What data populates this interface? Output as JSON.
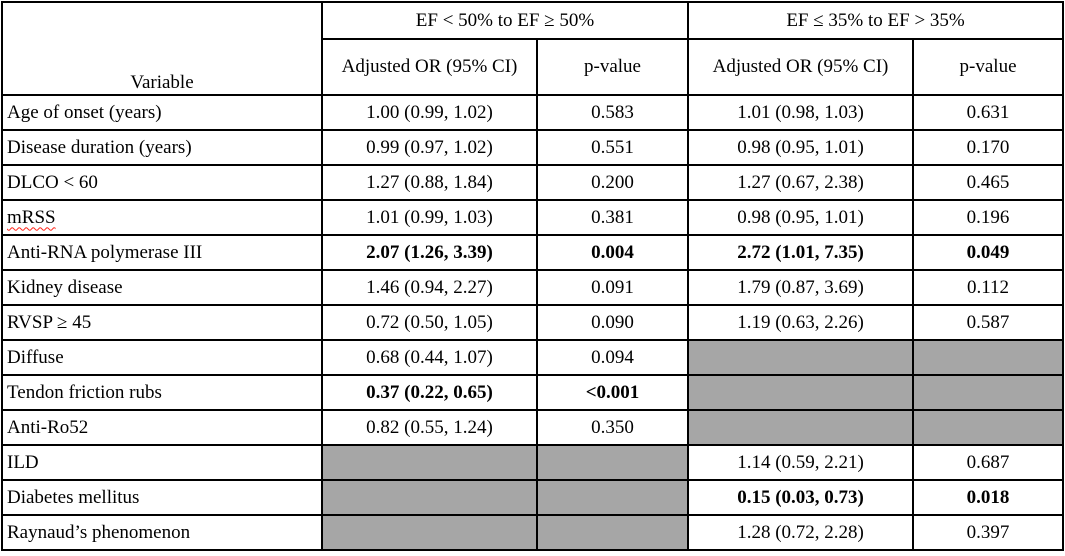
{
  "table": {
    "columns": {
      "variable_header": "Variable",
      "group1": {
        "title": "EF < 50% to EF ≥ 50%",
        "or_header": "Adjusted OR (95% CI)",
        "p_header": "p-value"
      },
      "group2": {
        "title": "EF ≤ 35% to EF > 35%",
        "or_header": "Adjusted OR (95% CI)",
        "p_header": "p-value"
      }
    },
    "rows": [
      {
        "variable": "Age of onset (years)",
        "or1": "1.00 (0.99, 1.02)",
        "p1": "0.583",
        "or2": "1.01 (0.98, 1.03)",
        "p2": "0.631"
      },
      {
        "variable": "Disease duration (years)",
        "or1": "0.99 (0.97, 1.02)",
        "p1": "0.551",
        "or2": "0.98 (0.95, 1.01)",
        "p2": "0.170"
      },
      {
        "variable": "DLCO < 60",
        "or1": "1.27 (0.88, 1.84)",
        "p1": "0.200",
        "or2": "1.27 (0.67, 2.38)",
        "p2": "0.465"
      },
      {
        "variable": "mRSS",
        "misspelled": true,
        "or1": "1.01 (0.99, 1.03)",
        "p1": "0.381",
        "or2": "0.98 (0.95, 1.01)",
        "p2": "0.196"
      },
      {
        "variable": "Anti-RNA polymerase III",
        "or1": "2.07 (1.26, 3.39)",
        "p1": "0.004",
        "bold1": true,
        "or2": "2.72 (1.01, 7.35)",
        "p2": "0.049",
        "bold2": true
      },
      {
        "variable": "Kidney disease",
        "or1": "1.46 (0.94, 2.27)",
        "p1": "0.091",
        "or2": "1.79 (0.87, 3.69)",
        "p2": "0.112"
      },
      {
        "variable": "RVSP ≥ 45",
        "or1": "0.72 (0.50, 1.05)",
        "p1": "0.090",
        "or2": "1.19 (0.63, 2.26)",
        "p2": "0.587"
      },
      {
        "variable": "Diffuse",
        "or1": "0.68 (0.44, 1.07)",
        "p1": "0.094",
        "or2": null,
        "p2": null,
        "shaded2": true
      },
      {
        "variable": "Tendon friction rubs",
        "or1": "0.37 (0.22, 0.65)",
        "p1": "<0.001",
        "bold1": true,
        "or2": null,
        "p2": null,
        "shaded2": true
      },
      {
        "variable": "Anti-Ro52",
        "or1": "0.82 (0.55, 1.24)",
        "p1": "0.350",
        "or2": null,
        "p2": null,
        "shaded2": true
      },
      {
        "variable": "ILD",
        "or1": null,
        "p1": null,
        "shaded1": true,
        "or2": "1.14 (0.59, 2.21)",
        "p2": "0.687"
      },
      {
        "variable": "Diabetes mellitus",
        "or1": null,
        "p1": null,
        "shaded1": true,
        "or2": "0.15 (0.03, 0.73)",
        "p2": "0.018",
        "bold2": true
      },
      {
        "variable": "Raynaud’s phenomenon",
        "or1": null,
        "p1": null,
        "shaded1": true,
        "or2": "1.28 (0.72, 2.28)",
        "p2": "0.397"
      }
    ]
  },
  "colors": {
    "shaded_cell": "#a6a6a6",
    "border": "#000000",
    "spellcheck_underline": "#ff2116"
  }
}
